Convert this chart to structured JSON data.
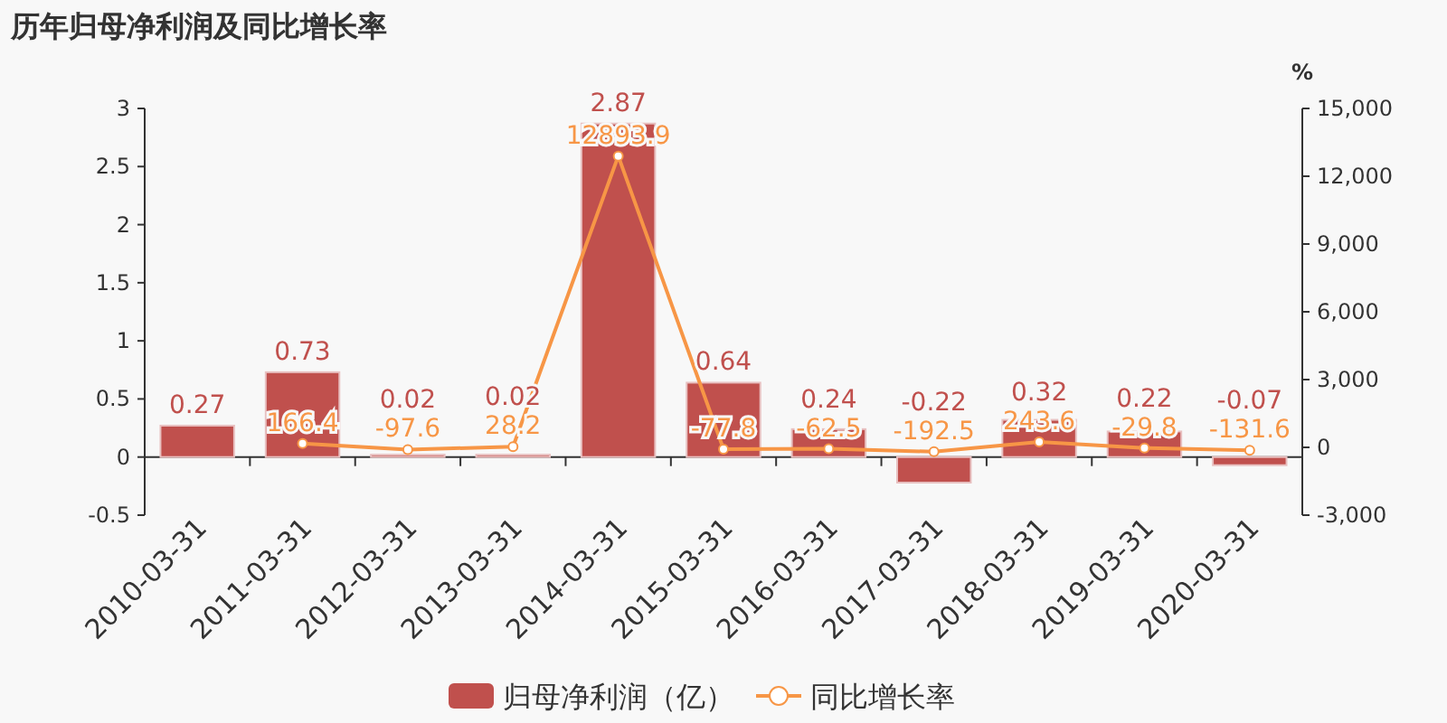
{
  "chart_data": {
    "type": "bar",
    "title": "历年归母净利润及同比增长率",
    "categories": [
      "2010-03-31",
      "2011-03-31",
      "2012-03-31",
      "2013-03-31",
      "2014-03-31",
      "2015-03-31",
      "2016-03-31",
      "2017-03-31",
      "2018-03-31",
      "2019-03-31",
      "2020-03-31"
    ],
    "series": [
      {
        "name": "归母净利润（亿）",
        "color": "#c0504d",
        "values": [
          0.27,
          0.73,
          0.02,
          0.02,
          2.87,
          0.64,
          0.24,
          -0.22,
          0.32,
          0.22,
          -0.07
        ]
      },
      {
        "name": "同比增长率",
        "type": "line",
        "axis": "y2",
        "color": "#f79646",
        "marker": "circle",
        "values": [
          null,
          166.4,
          -97.6,
          28.2,
          12893.9,
          -77.8,
          -62.5,
          -192.5,
          243.6,
          -29.8,
          -131.6
        ]
      }
    ],
    "ylim": [
      -0.5,
      3
    ],
    "yticks": [
      -0.5,
      0,
      0.5,
      1,
      1.5,
      2,
      2.5,
      3
    ],
    "y2lim": [
      -3000,
      15000
    ],
    "y2ticks": [
      {
        "value": -3000,
        "label": "-3,000"
      },
      0,
      {
        "value": 3000,
        "label": "3,000"
      },
      {
        "value": 6000,
        "label": "6,000"
      },
      {
        "value": 9000,
        "label": "9,000"
      },
      {
        "value": 12000,
        "label": "12,000"
      },
      {
        "value": 15000,
        "label": "15,000"
      }
    ],
    "y2label": "%",
    "data_labels": true,
    "legend": "bottom",
    "grid": false
  }
}
